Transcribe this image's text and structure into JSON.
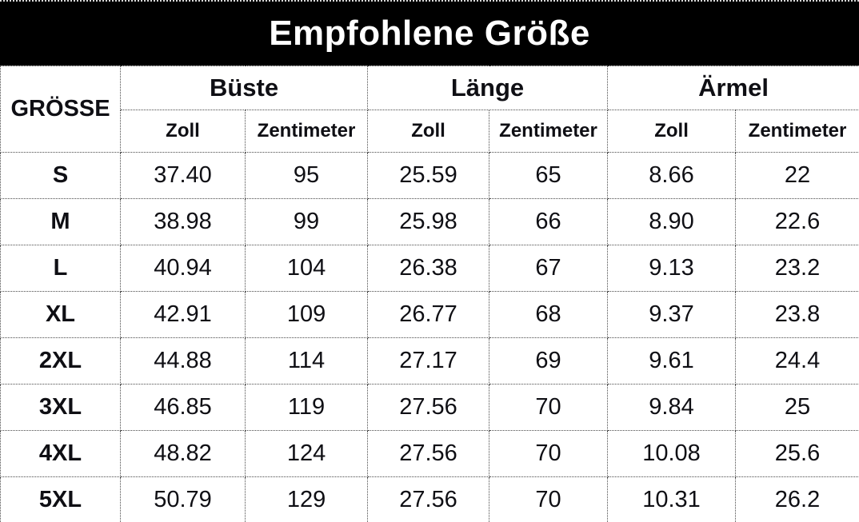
{
  "title": "Empfohlene Größe",
  "table": {
    "size_header": "GRÖSSE",
    "groups": [
      "Büste",
      "Länge",
      "Ärmel"
    ],
    "unit_headers": [
      "Zoll",
      "Zentimeter",
      "Zoll",
      "Zentimeter",
      "Zoll",
      "Zentimeter"
    ],
    "rows": [
      {
        "size": "S",
        "values": [
          "37.40",
          "95",
          "25.59",
          "65",
          "8.66",
          "22"
        ]
      },
      {
        "size": "M",
        "values": [
          "38.98",
          "99",
          "25.98",
          "66",
          "8.90",
          "22.6"
        ]
      },
      {
        "size": "L",
        "values": [
          "40.94",
          "104",
          "26.38",
          "67",
          "9.13",
          "23.2"
        ]
      },
      {
        "size": "XL",
        "values": [
          "42.91",
          "109",
          "26.77",
          "68",
          "9.37",
          "23.8"
        ]
      },
      {
        "size": "2XL",
        "values": [
          "44.88",
          "114",
          "27.17",
          "69",
          "9.61",
          "24.4"
        ]
      },
      {
        "size": "3XL",
        "values": [
          "46.85",
          "119",
          "27.56",
          "70",
          "9.84",
          "25"
        ]
      },
      {
        "size": "4XL",
        "values": [
          "48.82",
          "124",
          "27.56",
          "70",
          "10.08",
          "25.6"
        ]
      },
      {
        "size": "5XL",
        "values": [
          "50.79",
          "129",
          "27.56",
          "70",
          "10.31",
          "26.2"
        ]
      }
    ]
  }
}
